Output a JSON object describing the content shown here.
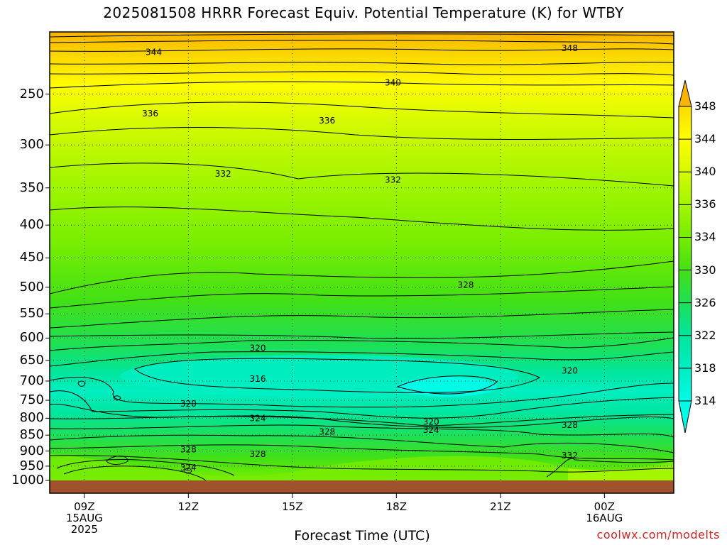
{
  "title": "2025081508 HRRR Forecast Equiv. Potential Temperature (K) for WTBY",
  "xlabel": "Forecast Time (UTC)",
  "credit": "coolwx.com/modelts",
  "colors": {
    "ground": "#a0522d",
    "contour_line": "#000000",
    "grid_dots": "#555555"
  },
  "chart_data": {
    "type": "heatmap",
    "title": "2025081508 HRRR Forecast Equiv. Potential Temperature (K) for WTBY",
    "xlabel": "Forecast Time (UTC)",
    "ylabel": "",
    "y_scale": "log-pressure",
    "y_range_hpa": [
      1000,
      200
    ],
    "y_ticks": [
      250,
      300,
      350,
      400,
      450,
      500,
      550,
      600,
      650,
      700,
      750,
      800,
      850,
      900,
      950,
      1000
    ],
    "x_ticks": [
      {
        "label": "09Z",
        "sub": [
          "15AUG",
          "2025"
        ],
        "hour": 9
      },
      {
        "label": "12Z",
        "sub": [],
        "hour": 12
      },
      {
        "label": "15Z",
        "sub": [],
        "hour": 15
      },
      {
        "label": "18Z",
        "sub": [],
        "hour": 18
      },
      {
        "label": "21Z",
        "sub": [],
        "hour": 21
      },
      {
        "label": "00Z",
        "sub": [
          "16AUG"
        ],
        "hour": 24
      }
    ],
    "x_range_hours": [
      8,
      26
    ],
    "colorbar": {
      "levels": [
        314,
        318,
        322,
        326,
        330,
        334,
        336,
        340,
        344,
        348
      ],
      "colors": [
        "#00fbe6",
        "#00eec2",
        "#00e69e",
        "#1de058",
        "#42e016",
        "#78ee00",
        "#a4f600",
        "#d5fa00",
        "#fffd00",
        "#fbdc00",
        "#f8b400"
      ]
    },
    "contour_levels": [
      314,
      316,
      318,
      320,
      322,
      324,
      326,
      328,
      330,
      332,
      334,
      336,
      338,
      340,
      342,
      344,
      346,
      348
    ],
    "contour_labels": [
      {
        "text": "344",
        "hour": 11.0,
        "p": 215
      },
      {
        "text": "348",
        "hour": 23.0,
        "p": 212
      },
      {
        "text": "340",
        "hour": 17.9,
        "p": 240
      },
      {
        "text": "336",
        "hour": 10.9,
        "p": 268
      },
      {
        "text": "336",
        "hour": 16.0,
        "p": 275
      },
      {
        "text": "332",
        "hour": 13.0,
        "p": 333
      },
      {
        "text": "332",
        "hour": 17.9,
        "p": 340
      },
      {
        "text": "328",
        "hour": 20.0,
        "p": 496
      },
      {
        "text": "320",
        "hour": 14.0,
        "p": 622
      },
      {
        "text": "320",
        "hour": 23.0,
        "p": 675
      },
      {
        "text": "316",
        "hour": 14.0,
        "p": 695
      },
      {
        "text": "320",
        "hour": 12.0,
        "p": 760
      },
      {
        "text": "324",
        "hour": 14.0,
        "p": 800
      },
      {
        "text": "320",
        "hour": 19.0,
        "p": 810
      },
      {
        "text": "324",
        "hour": 19.0,
        "p": 835
      },
      {
        "text": "328",
        "hour": 16.0,
        "p": 840
      },
      {
        "text": "328",
        "hour": 23.0,
        "p": 820
      },
      {
        "text": "328",
        "hour": 12.0,
        "p": 895
      },
      {
        "text": "328",
        "hour": 14.0,
        "p": 910
      },
      {
        "text": "332",
        "hour": 23.0,
        "p": 915
      },
      {
        "text": "324",
        "hour": 12.0,
        "p": 955
      }
    ]
  }
}
